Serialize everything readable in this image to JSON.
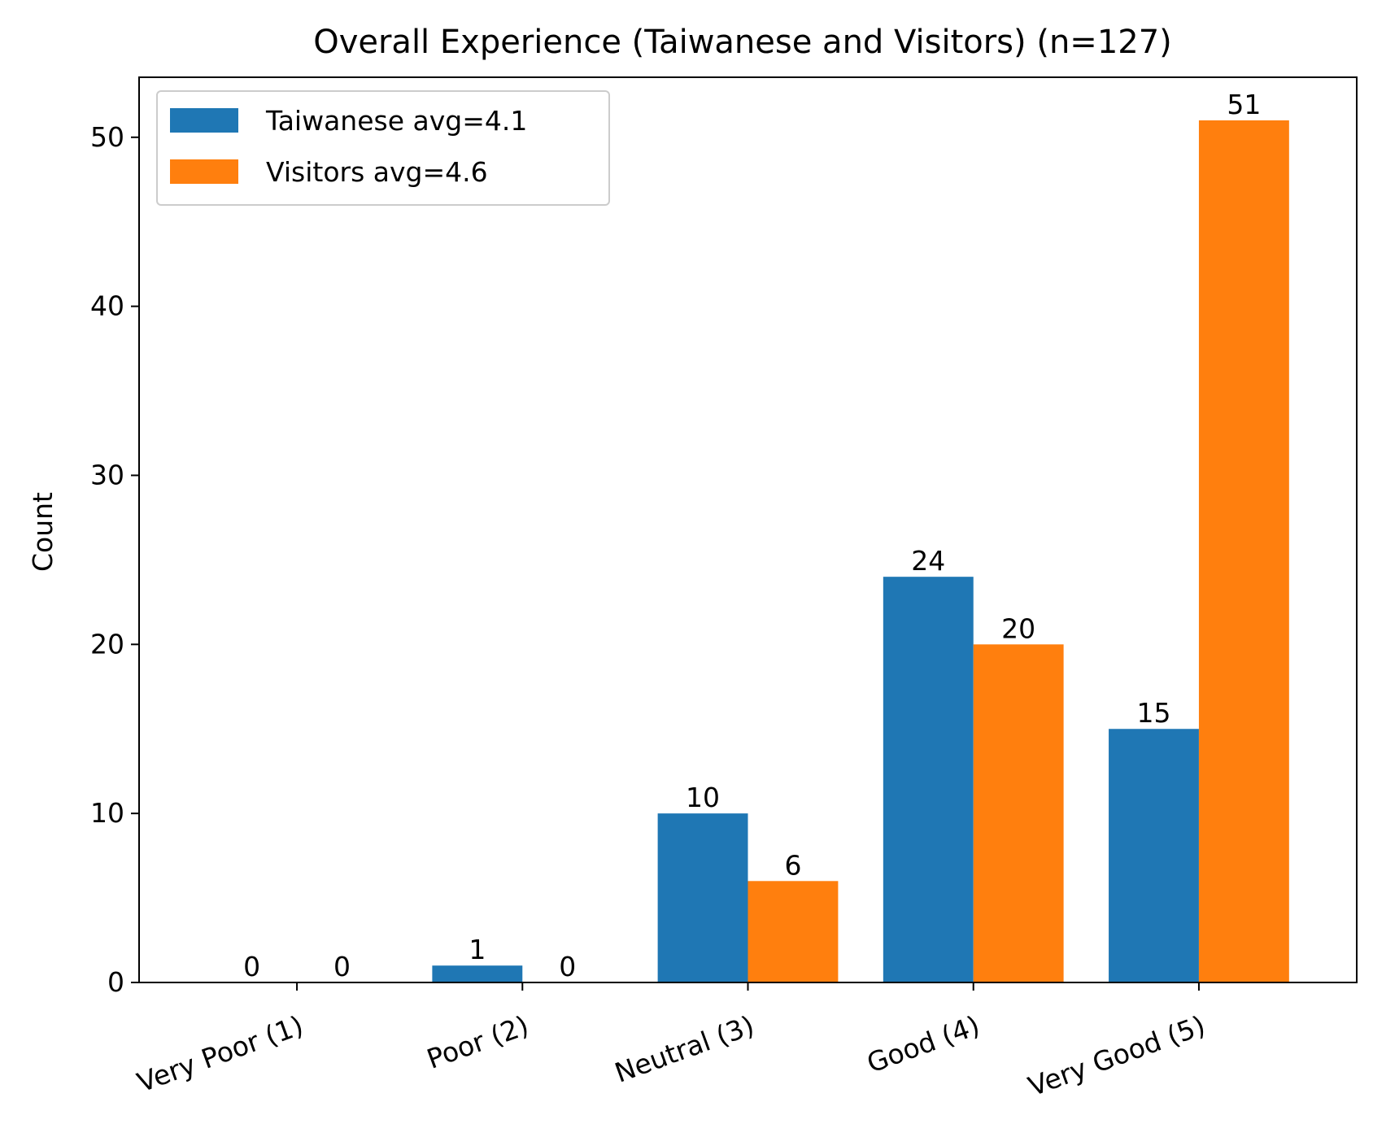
{
  "chart_data": {
    "type": "bar",
    "title": "Overall Experience (Taiwanese and Visitors) (n=127)",
    "xlabel": "",
    "ylabel": "Count",
    "categories": [
      "Very Poor (1)",
      "Poor (2)",
      "Neutral (3)",
      "Good (4)",
      "Very Good (5)"
    ],
    "series": [
      {
        "name": "Taiwanese avg=4.1",
        "values": [
          0,
          1,
          10,
          24,
          15
        ],
        "color": "#1f77b4"
      },
      {
        "name": "Visitors avg=4.6",
        "values": [
          0,
          0,
          6,
          20,
          51
        ],
        "color": "#ff7f0e"
      }
    ],
    "ylim": [
      0,
      53.55
    ],
    "yticks": [
      0,
      10,
      20,
      30,
      40,
      50
    ],
    "grid": false,
    "legend_position": "top-left",
    "show_data_labels": true
  }
}
